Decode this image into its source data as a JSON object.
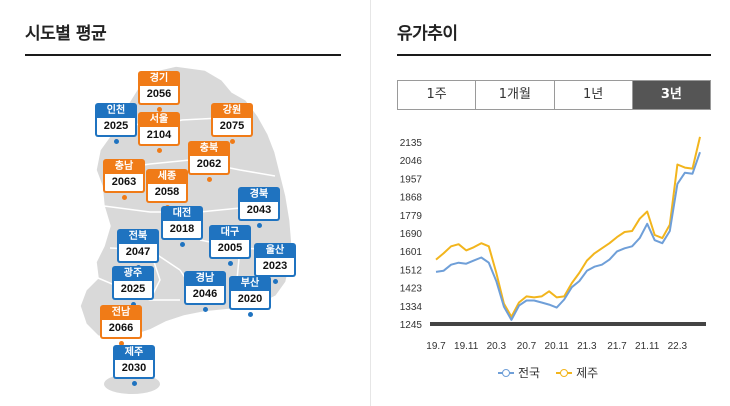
{
  "left": {
    "title": "시도별 평균",
    "regions": [
      {
        "name": "경기",
        "price": "2056",
        "color": "orange"
      },
      {
        "name": "인천",
        "price": "2025",
        "color": "blue"
      },
      {
        "name": "서울",
        "price": "2104",
        "color": "orange"
      },
      {
        "name": "강원",
        "price": "2075",
        "color": "orange"
      },
      {
        "name": "충북",
        "price": "2062",
        "color": "orange"
      },
      {
        "name": "충남",
        "price": "2063",
        "color": "orange"
      },
      {
        "name": "세종",
        "price": "2058",
        "color": "orange"
      },
      {
        "name": "경북",
        "price": "2043",
        "color": "blue"
      },
      {
        "name": "대전",
        "price": "2018",
        "color": "blue"
      },
      {
        "name": "대구",
        "price": "2005",
        "color": "blue"
      },
      {
        "name": "전북",
        "price": "2047",
        "color": "blue"
      },
      {
        "name": "울산",
        "price": "2023",
        "color": "blue"
      },
      {
        "name": "광주",
        "price": "2025",
        "color": "blue"
      },
      {
        "name": "경남",
        "price": "2046",
        "color": "blue"
      },
      {
        "name": "부산",
        "price": "2020",
        "color": "blue"
      },
      {
        "name": "전남",
        "price": "2066",
        "color": "orange"
      },
      {
        "name": "제주",
        "price": "2030",
        "color": "blue"
      }
    ]
  },
  "right": {
    "title": "유가추이",
    "tabs": [
      "1주",
      "1개월",
      "1년",
      "3년"
    ],
    "active_tab": "3년",
    "legend": [
      {
        "name": "전국",
        "color": "#6f9fd8"
      },
      {
        "name": "제주",
        "color": "#f2b51d"
      }
    ]
  },
  "chart_data": {
    "type": "line",
    "x_ticks": [
      "19.7",
      "19.11",
      "20.3",
      "20.7",
      "20.11",
      "21.3",
      "21.7",
      "21.11",
      "22.3"
    ],
    "y_ticks": [
      1245,
      1334,
      1423,
      1512,
      1601,
      1690,
      1779,
      1868,
      1957,
      2046,
      2135
    ],
    "ylim": [
      1245,
      2135
    ],
    "x": [
      "19.7",
      "19.8",
      "19.9",
      "19.10",
      "19.11",
      "19.12",
      "20.1",
      "20.2",
      "20.3",
      "20.4",
      "20.5",
      "20.6",
      "20.7",
      "20.8",
      "20.9",
      "20.10",
      "20.11",
      "20.12",
      "21.1",
      "21.2",
      "21.3",
      "21.4",
      "21.5",
      "21.6",
      "21.7",
      "21.8",
      "21.9",
      "21.10",
      "21.11",
      "21.12",
      "22.1",
      "22.2",
      "22.3",
      "22.4",
      "22.5",
      "22.6"
    ],
    "series": [
      {
        "name": "전국",
        "color": "#6f9fd8",
        "values": [
          1500,
          1505,
          1535,
          1545,
          1540,
          1555,
          1570,
          1545,
          1455,
          1330,
          1265,
          1335,
          1360,
          1360,
          1350,
          1340,
          1325,
          1365,
          1425,
          1455,
          1505,
          1525,
          1535,
          1560,
          1600,
          1615,
          1625,
          1665,
          1735,
          1655,
          1640,
          1700,
          1930,
          1985,
          1980,
          2085
        ]
      },
      {
        "name": "제주",
        "color": "#f2b51d",
        "values": [
          1560,
          1590,
          1625,
          1635,
          1605,
          1620,
          1640,
          1625,
          1495,
          1345,
          1280,
          1350,
          1380,
          1375,
          1380,
          1405,
          1375,
          1380,
          1445,
          1495,
          1555,
          1590,
          1615,
          1640,
          1670,
          1695,
          1700,
          1760,
          1795,
          1680,
          1665,
          1730,
          2025,
          2010,
          2005,
          2160
        ]
      }
    ]
  }
}
